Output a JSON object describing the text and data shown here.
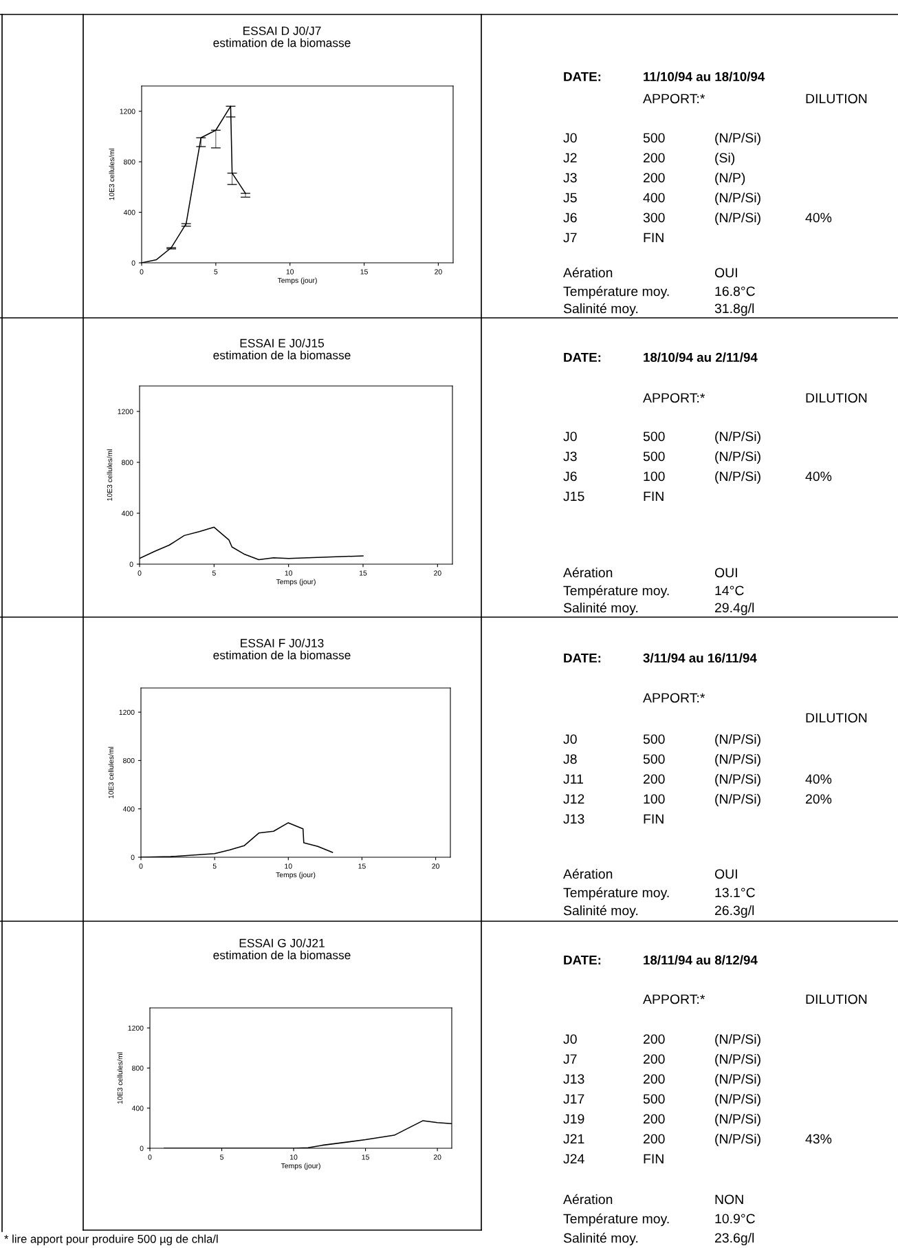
{
  "chart_data": [
    {
      "type": "line",
      "title": "ESSAI D J0/J7\nestimation de la biomasse",
      "xlabel": "Temps (jour)",
      "ylabel": "10E3 cellules/ml",
      "xlim": [
        0,
        21
      ],
      "ylim": [
        0,
        1400
      ],
      "xticks": [
        0,
        5,
        10,
        15,
        20
      ],
      "yticks": [
        0,
        400,
        800,
        1200
      ],
      "series": [
        {
          "color": "#000000",
          "x": [
            0,
            1,
            2,
            3,
            4,
            5,
            6,
            6.1,
            7
          ],
          "values": [
            0,
            25,
            120,
            310,
            990,
            1050,
            1240,
            710,
            550
          ],
          "errors": [
            null,
            null,
            [
              110,
              120
            ],
            [
              290,
              310
            ],
            [
              920,
              990
            ],
            [
              910,
              1050
            ],
            [
              1155,
              1240
            ],
            [
              620,
              710
            ],
            [
              520,
              550
            ]
          ]
        }
      ]
    },
    {
      "type": "other",
      "title": "DATE:",
      "subtitle": "11/10/94 au 18/10/94",
      "annotations": [
        "\tAPPORT:*\t\tDILUTION",
        "J0\t500\t(N/P/Si)",
        "J2\t200\t(Si)",
        "J3\t200\t(N/P)",
        "J5\t400\t(N/P/Si)",
        "J6\t300\t(N/P/Si)\t40%",
        "J7\tFIN",
        "Aération\t\tOUI",
        "Température moy.\t\t16.8°C",
        "Salinité moy.\t\t31.8g/l"
      ]
    },
    {
      "type": "line",
      "title": "ESSAI E J0/J15\nestimation de la biomasse",
      "xlabel": "Temps (jour)",
      "ylabel": "10E3 cellules/ml",
      "xlim": [
        0,
        21
      ],
      "ylim": [
        0,
        1400
      ],
      "xticks": [
        0,
        5,
        10,
        15,
        20
      ],
      "yticks": [
        0,
        400,
        800,
        1200
      ],
      "series": [
        {
          "color": "#000000",
          "x": [
            0,
            1,
            2,
            3,
            4,
            5,
            6,
            6.2,
            7,
            8,
            9,
            10,
            15
          ],
          "values": [
            45,
            100,
            150,
            225,
            255,
            290,
            190,
            135,
            80,
            35,
            50,
            45,
            65
          ]
        }
      ]
    },
    {
      "type": "other",
      "title": "DATE:",
      "subtitle": "18/10/94 au 2/11/94",
      "annotations": [
        "\tAPPORT:*\t\tDILUTION",
        "J0\t500\t(N/P/Si)",
        "J3\t500\t(N/P/Si)",
        "J6\t100\t(N/P/Si)\t40%",
        "J15\tFIN",
        "Aération\t\tOUI",
        "Température moy.\t\t14°C",
        "Salinité moy.\t\t29.4g/l"
      ]
    },
    {
      "type": "line",
      "title": "ESSAI F J0/J13\nestimation de la biomasse",
      "xlabel": "Temps (jour)",
      "ylabel": "10E3 cellules/ml",
      "xlim": [
        0,
        21
      ],
      "ylim": [
        0,
        1400
      ],
      "xticks": [
        0,
        5,
        10,
        15,
        20
      ],
      "yticks": [
        0,
        400,
        800,
        1200
      ],
      "series": [
        {
          "color": "#000000",
          "x": [
            0,
            2,
            5,
            6,
            7,
            8,
            9,
            10,
            11,
            11.05,
            12,
            13
          ],
          "values": [
            0,
            5,
            30,
            60,
            95,
            200,
            215,
            285,
            235,
            120,
            90,
            40
          ]
        }
      ]
    },
    {
      "type": "other",
      "title": "DATE:",
      "subtitle": "3/11/94 au 16/11/94",
      "annotations": [
        "\tAPPORT:*",
        "\t\t\tDILUTION",
        "J0\t500\t(N/P/Si)",
        "J8\t500\t(N/P/Si)",
        "J11\t200\t(N/P/Si)\t40%",
        "J12\t100\t(N/P/Si)\t20%",
        "J13\tFIN",
        "Aération\t\tOUI",
        "Température moy.\t\t13.1°C",
        "Salinité moy.\t\t26.3g/l"
      ]
    },
    {
      "type": "line",
      "title": "ESSAI G J0/J21\nestimation de la biomasse",
      "xlabel": "Temps (jour)",
      "ylabel": "10E3 cellules/ml",
      "xlim": [
        0,
        21
      ],
      "ylim": [
        0,
        1400
      ],
      "xticks": [
        0,
        5,
        10,
        15,
        20
      ],
      "yticks": [
        0,
        400,
        800,
        1200
      ],
      "annotations": [
        "* lire apport pour produire 500 µg de chla/l"
      ],
      "series": [
        {
          "color": "#000000",
          "x": [
            1,
            5,
            7,
            10,
            11,
            12,
            15,
            17,
            19,
            20,
            21
          ],
          "values": [
            0,
            0,
            0,
            0,
            5,
            30,
            85,
            130,
            275,
            255,
            245
          ]
        }
      ]
    },
    {
      "type": "other",
      "title": "DATE:",
      "subtitle": "18/11/94 au 8/12/94",
      "annotations": [
        "\tAPPORT:*\t\tDILUTION",
        "J0\t200\t(N/P/Si)",
        "J7\t200\t(N/P/Si)",
        "J13\t200\t(N/P/Si)",
        "J17\t500\t(N/P/Si)",
        "J19\t200\t(N/P/Si)",
        "J21\t200\t(N/P/Si)\t43%",
        "J24\tFIN",
        "Aération\t\tNON",
        "Température moy.\t\t10.9°C",
        "Salinité moy.\t\t23.6g/l"
      ]
    }
  ]
}
